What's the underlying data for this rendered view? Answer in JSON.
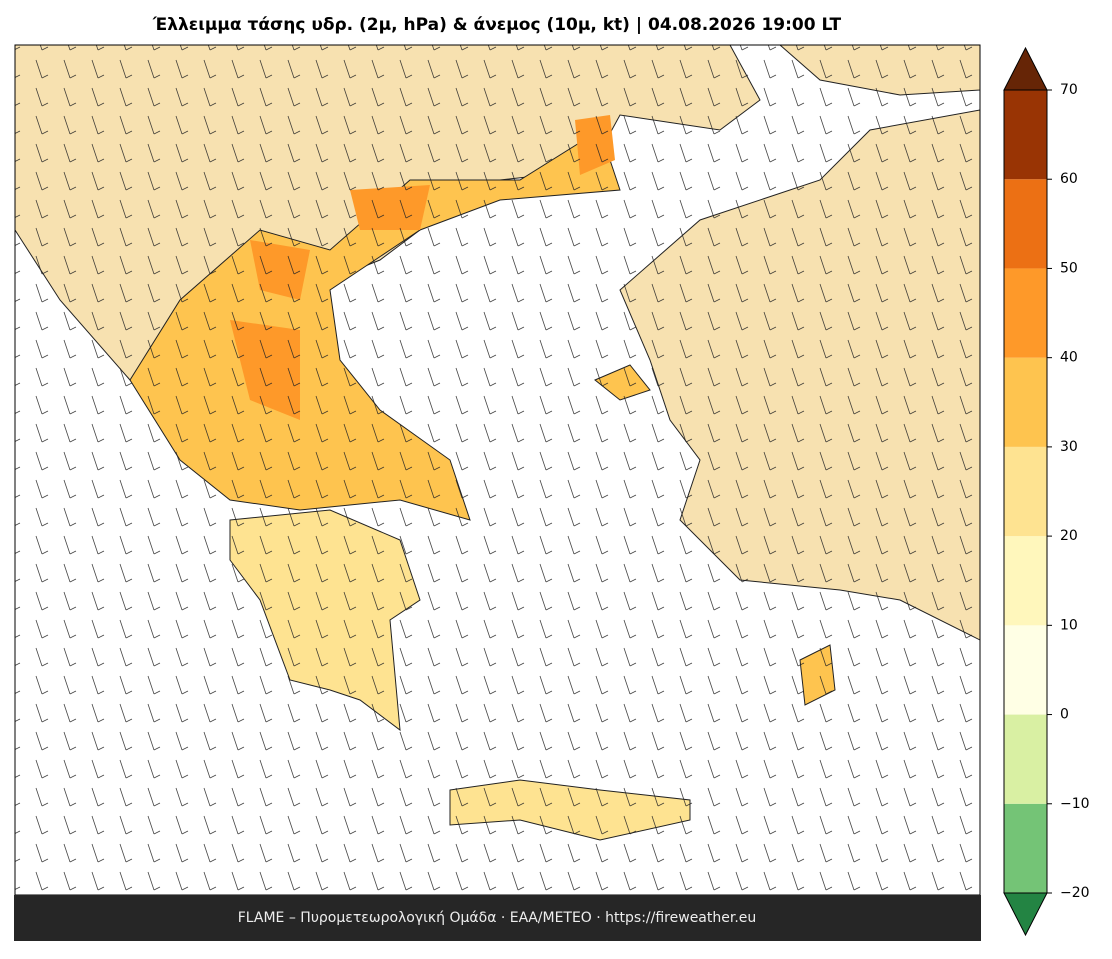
{
  "title": "Έλλειμμα τάσης υδρ. (2μ, hPa) & άνεμος (10μ, kt)  |  04.08.2026 19:00 LT",
  "footer": "FLAME – Πυρομετεωρολογική Ομάδα · ΕΑΑ/METEO · https://fireweather.eu",
  "colorbar": {
    "lim": [
      -20,
      70
    ],
    "ticks": [
      {
        "value": -20,
        "label": "−20"
      },
      {
        "value": -10,
        "label": "−10"
      },
      0,
      10,
      20,
      30,
      40,
      50,
      60,
      70
    ],
    "colors": [
      "#74c476",
      "#d9f0a3",
      "#ffffe5",
      "#fff7bc",
      "#fee391",
      "#fec44f",
      "#fe9929",
      "#ec7014",
      "#993404"
    ],
    "under_color": "#238443",
    "over_color": "#662506"
  }
}
